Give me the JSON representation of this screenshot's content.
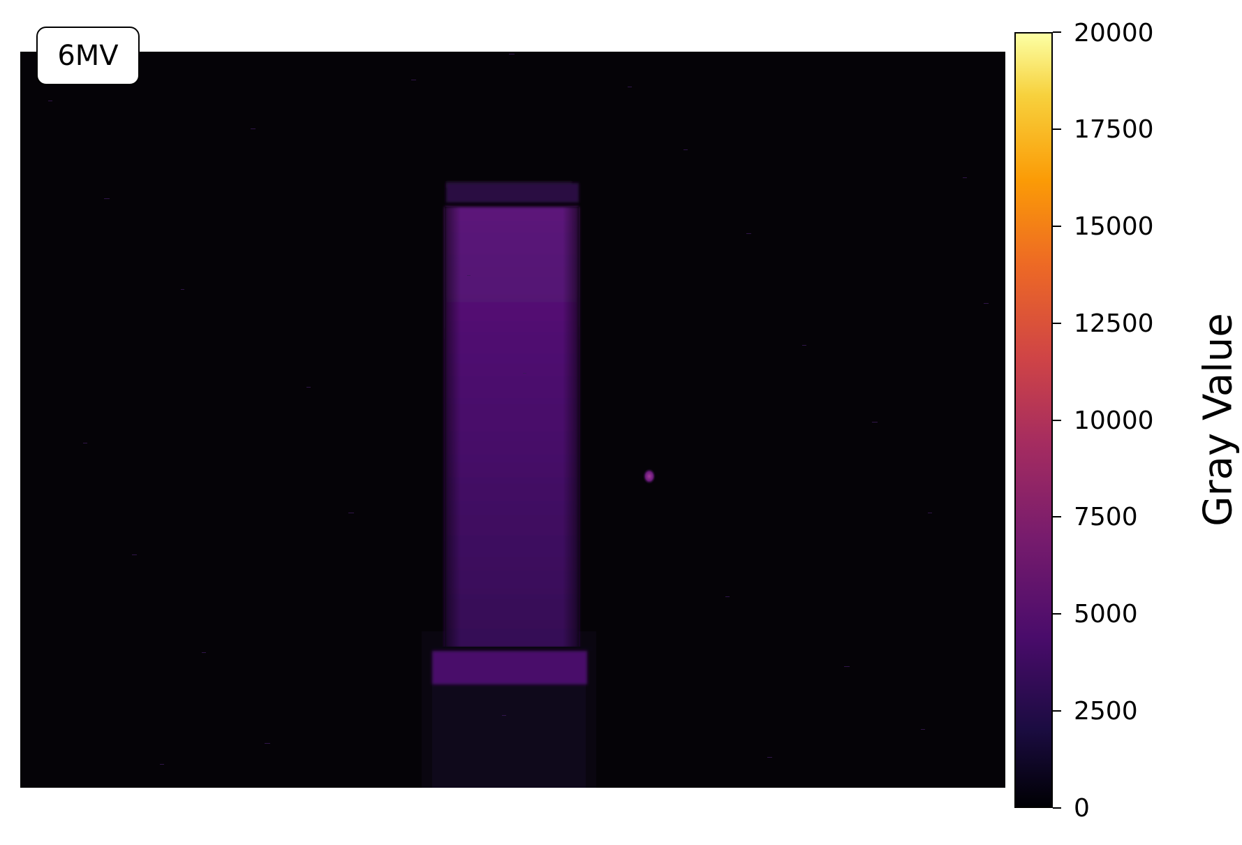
{
  "figure": {
    "label": "6MV",
    "colormap": "inferno",
    "colorbar": {
      "title": "Gray Value",
      "min": 0,
      "max": 20000,
      "ticks": [
        "0",
        "2500",
        "5000",
        "7500",
        "10000",
        "12500",
        "15000",
        "17500",
        "20000"
      ]
    },
    "colors": {
      "background": "#050307",
      "beam_field": "#561277",
      "spot": "#7a1f82"
    }
  }
}
